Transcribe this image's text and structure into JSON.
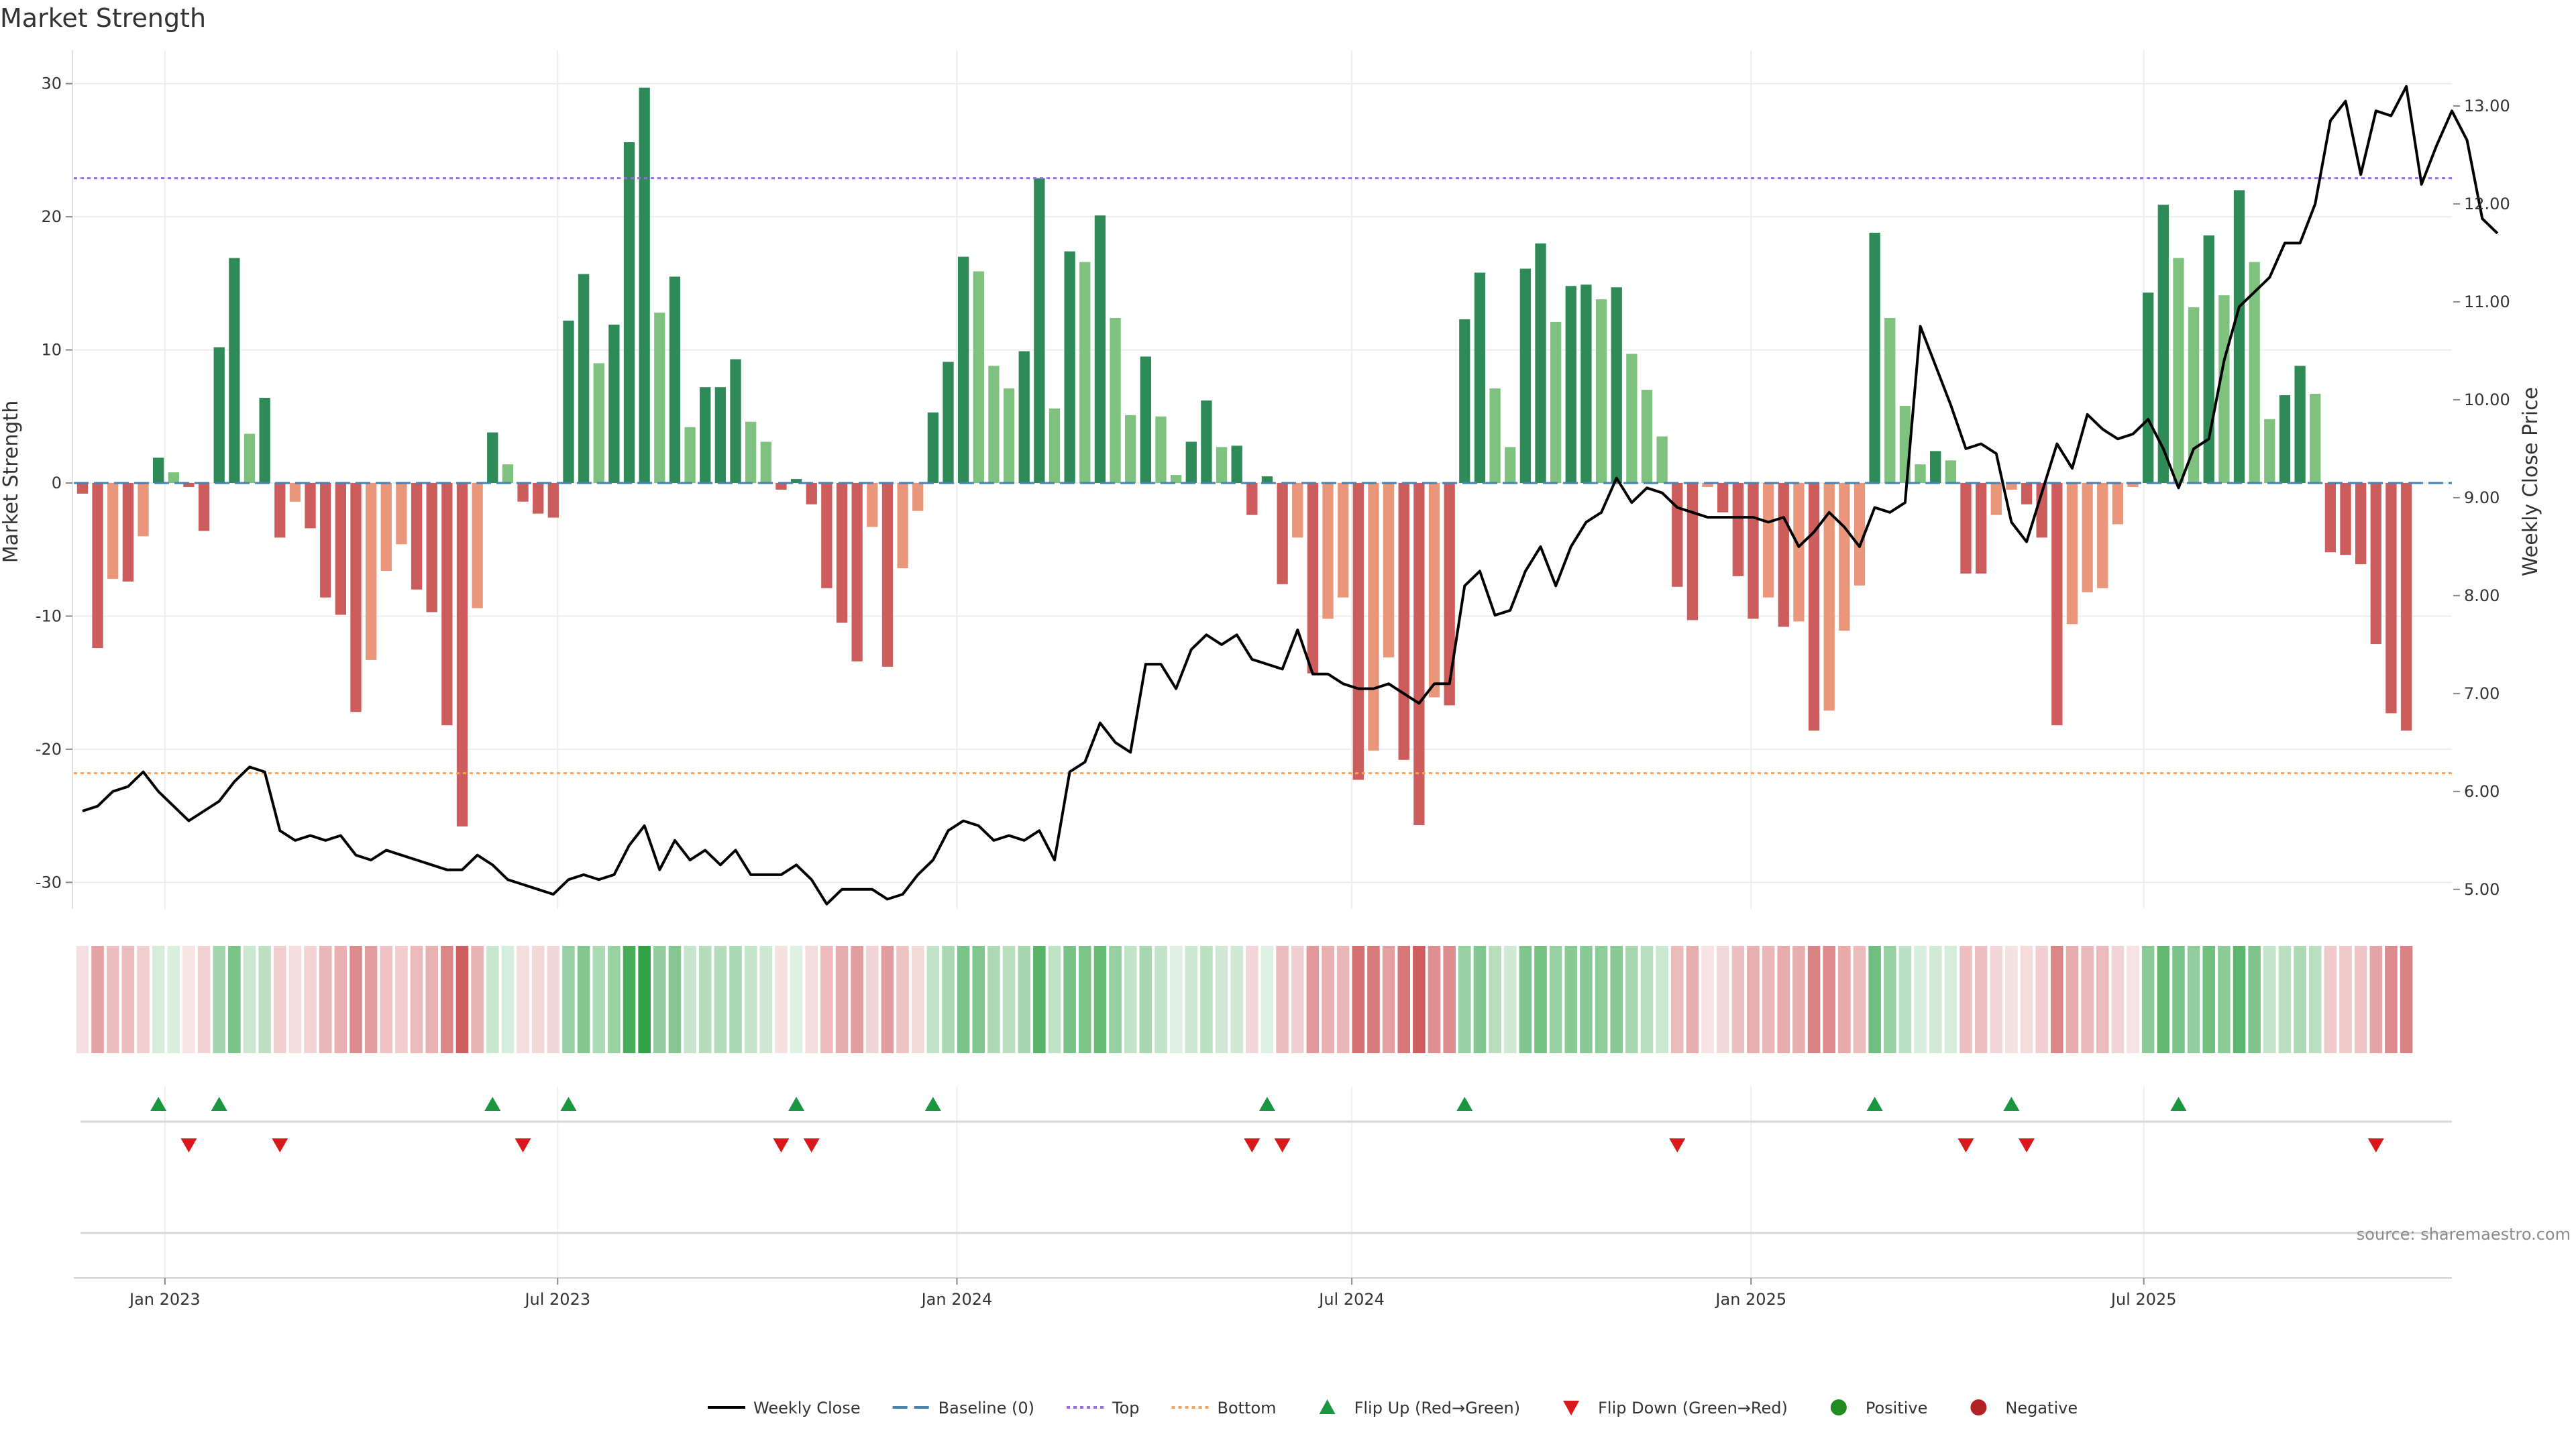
{
  "chart_data": {
    "type": "bar",
    "title": "Market Strength",
    "ylabel": "Market Strength",
    "y2label": "Weekly Close Price",
    "ylim": [
      -32,
      32
    ],
    "y2lim": [
      4.8,
      13.5
    ],
    "yticks": [
      30,
      20,
      10,
      0,
      -10,
      -20,
      -30
    ],
    "y2ticks": [
      "13.00",
      "12.00",
      "11.00",
      "10.00",
      "9.00",
      "8.00",
      "7.00",
      "6.00",
      "5.00"
    ],
    "xlim": [
      "2022-11-20",
      "2025-11-20"
    ],
    "xticks": [
      {
        "label": "Jan 2023",
        "date": "2023-01-01"
      },
      {
        "label": "Jul 2023",
        "date": "2023-07-01"
      },
      {
        "label": "Jan 2024",
        "date": "2024-01-01"
      },
      {
        "label": "Jul 2024",
        "date": "2024-07-01"
      },
      {
        "label": "Jan 2025",
        "date": "2025-01-01"
      },
      {
        "label": "Jul 2025",
        "date": "2025-07-01"
      }
    ],
    "start_date": "2022-11-24",
    "top_line": 22.9,
    "bottom_line": -21.8,
    "colors": {
      "pos_strong": "#2e8b57",
      "pos_weak": "#7fc27f",
      "neg_strong": "#cd5c5c",
      "neg_weak": "#e9967a",
      "close": "#000000",
      "baseline": "#4682b4",
      "top": "#9370db",
      "bottom": "#f4a460",
      "flip_up": "#1a9641",
      "flip_down": "#d7191c",
      "positive": "#228b22",
      "negative": "#b22222"
    },
    "strength": [
      -0.8,
      -12.4,
      -7.2,
      -7.4,
      -4.0,
      1.9,
      0.8,
      -0.3,
      -3.6,
      10.2,
      16.9,
      3.7,
      6.4,
      -4.1,
      -1.4,
      -3.4,
      -8.6,
      -9.9,
      -17.2,
      -13.3,
      -6.6,
      -4.6,
      -8.0,
      -9.7,
      -18.2,
      -25.8,
      -9.4,
      3.8,
      1.4,
      -1.4,
      -2.3,
      -2.6,
      12.2,
      15.7,
      9.0,
      11.9,
      25.6,
      29.7,
      12.8,
      15.5,
      4.2,
      7.2,
      7.2,
      9.3,
      4.6,
      3.1,
      -0.5,
      0.3,
      -1.6,
      -7.9,
      -10.5,
      -13.4,
      -3.3,
      -13.8,
      -6.4,
      -2.1,
      5.3,
      9.1,
      17.0,
      15.9,
      8.8,
      7.1,
      9.9,
      22.9,
      5.6,
      17.4,
      16.6,
      20.1,
      12.4,
      5.1,
      9.5,
      5.0,
      0.6,
      3.1,
      6.2,
      2.7,
      2.8,
      -2.4,
      0.5,
      -7.6,
      -4.1,
      -14.3,
      -10.2,
      -8.6,
      -22.3,
      -20.1,
      -13.1,
      -20.8,
      -25.7,
      -16.1,
      -16.7,
      12.3,
      15.8,
      7.1,
      2.7,
      16.1,
      18.0,
      12.1,
      14.8,
      14.9,
      13.8,
      14.7,
      9.7,
      7.0,
      3.5,
      -7.8,
      -10.3,
      -0.3,
      -2.2,
      -7.0,
      -10.2,
      -8.6,
      -10.8,
      -10.4,
      -18.6,
      -17.1,
      -11.1,
      -7.7,
      18.8,
      12.4,
      5.8,
      1.4,
      2.4,
      1.7,
      -6.8,
      -6.8,
      -2.4,
      -0.5,
      -1.6,
      -4.1,
      -18.2,
      -10.6,
      -8.2,
      -7.9,
      -3.1,
      -0.3,
      14.3,
      20.9,
      16.9,
      13.2,
      18.6,
      14.1,
      22.0,
      16.6,
      4.8,
      6.6,
      8.8,
      6.7,
      -5.2,
      -5.4,
      -6.1,
      -12.1,
      -17.3,
      -18.6
    ],
    "weekly_close": [
      5.8,
      5.85,
      6.0,
      6.05,
      6.2,
      6.0,
      5.85,
      5.7,
      5.8,
      5.9,
      6.1,
      6.25,
      6.2,
      5.6,
      5.5,
      5.55,
      5.5,
      5.55,
      5.35,
      5.3,
      5.4,
      5.35,
      5.3,
      5.25,
      5.2,
      5.2,
      5.35,
      5.25,
      5.1,
      5.05,
      5.0,
      4.95,
      5.1,
      5.15,
      5.1,
      5.15,
      5.45,
      5.65,
      5.2,
      5.5,
      5.3,
      5.4,
      5.25,
      5.4,
      5.15,
      5.15,
      5.15,
      5.25,
      5.1,
      4.85,
      5.0,
      5.0,
      5.0,
      4.9,
      4.95,
      5.15,
      5.3,
      5.6,
      5.7,
      5.65,
      5.5,
      5.55,
      5.5,
      5.6,
      5.3,
      6.2,
      6.3,
      6.7,
      6.5,
      6.4,
      7.3,
      7.3,
      7.05,
      7.45,
      7.6,
      7.5,
      7.6,
      7.35,
      7.3,
      7.25,
      7.65,
      7.2,
      7.2,
      7.1,
      7.05,
      7.05,
      7.1,
      7.0,
      6.9,
      7.1,
      7.1,
      8.1,
      8.25,
      7.8,
      7.85,
      8.25,
      8.5,
      8.1,
      8.5,
      8.75,
      8.85,
      9.2,
      8.95,
      9.1,
      9.05,
      8.9,
      8.85,
      8.8,
      8.8,
      8.8,
      8.8,
      8.75,
      8.8,
      8.5,
      8.65,
      8.85,
      8.7,
      8.5,
      8.9,
      8.85,
      8.95,
      10.75,
      10.35,
      9.95,
      9.5,
      9.55,
      9.45,
      8.75,
      8.55,
      9.05,
      9.55,
      9.3,
      9.85,
      9.7,
      9.6,
      9.65,
      9.8,
      9.5,
      9.1,
      9.5,
      9.6,
      10.4,
      10.95,
      11.1,
      11.25,
      11.6,
      11.6,
      12.0,
      12.85,
      13.05,
      12.3,
      12.95,
      12.9,
      13.2,
      12.2,
      12.6,
      12.95,
      12.65,
      11.85,
      11.7
    ],
    "flip_up_weeks": [
      5,
      9,
      27,
      32,
      47,
      56,
      78,
      91,
      118,
      127,
      138
    ],
    "flip_down_weeks": [
      7,
      13,
      29,
      46,
      48,
      77,
      79,
      105,
      124,
      128,
      151
    ],
    "legend": [
      {
        "label": "Weekly Close",
        "kind": "line"
      },
      {
        "label": "Baseline (0)",
        "kind": "dash"
      },
      {
        "label": "Top",
        "kind": "dot-top"
      },
      {
        "label": "Bottom",
        "kind": "dot-bottom"
      },
      {
        "label": "Flip Up (Red→Green)",
        "kind": "tri-up"
      },
      {
        "label": "Flip Down (Green→Red)",
        "kind": "tri-down"
      },
      {
        "label": "Positive",
        "kind": "dot-pos"
      },
      {
        "label": "Negative",
        "kind": "dot-neg"
      }
    ],
    "legend_position": "bottom-center",
    "grid": true,
    "source": "source: sharemaestro.com"
  }
}
